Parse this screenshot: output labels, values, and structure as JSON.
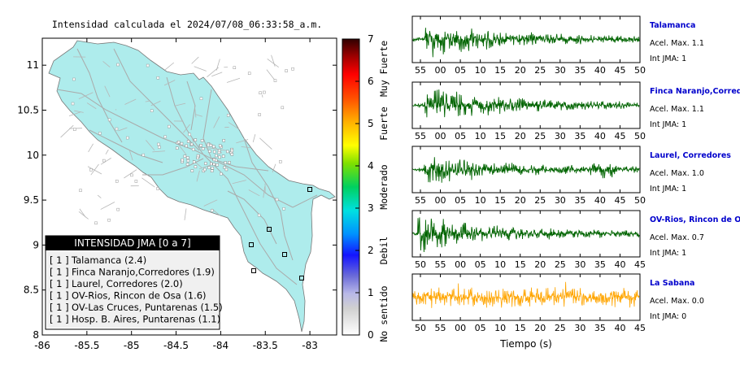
{
  "map": {
    "title": "Intensidad calculada el 2024/07/08_06:33:58_a.m.",
    "lat_ticks": [
      "11",
      "10.5",
      "10",
      "9.5",
      "9",
      "8.5",
      "8"
    ],
    "lon_ticks": [
      "-86",
      "-85.5",
      "-85",
      "-84.5",
      "-84",
      "-83.5",
      "-83"
    ],
    "xlim": [
      -86,
      -82.7
    ],
    "ylim": [
      8,
      11.3
    ],
    "land_color": "#aeecec",
    "colorbar": {
      "ticks": [
        "0",
        "1",
        "2",
        "3",
        "4",
        "5",
        "6",
        "7"
      ],
      "range": [
        0,
        7
      ],
      "labels": [
        "No sentido",
        "Debil",
        "Moderado",
        "Fuerte",
        "Muy Fuerte"
      ]
    },
    "legend": {
      "title": "INTENSIDAD JMA [0 a 7]",
      "items": [
        {
          "intensity": "[ 1 ]",
          "label": "Talamanca (2.4)"
        },
        {
          "intensity": "[ 1 ]",
          "label": "Finca Naranjo,Corredores (1.9)"
        },
        {
          "intensity": "[ 1 ]",
          "label": "Laurel, Corredores (2.0)"
        },
        {
          "intensity": "[ 1 ]",
          "label": "OV-Rios, Rincon de Osa (1.6)"
        },
        {
          "intensity": "[ 1 ]",
          "label": "OV-Las Cruces, Puntarenas (1.5)"
        },
        {
          "intensity": "[ 1 ]",
          "label": "Hosp. B. Aires, Puntarenas (1.1)"
        }
      ]
    }
  },
  "chart_data": {
    "type": "line",
    "xlabel": "Tiempo (s)",
    "series": [
      {
        "name": "Talamanca",
        "accel": "Acel. Max. 1.1",
        "jma": "Int JMA: 1",
        "color": "#006400",
        "ticks": [
          "55",
          "00",
          "05",
          "10",
          "15",
          "20",
          "25",
          "30",
          "35",
          "40",
          "45",
          "50"
        ]
      },
      {
        "name": "Finca Naranjo,Corredores",
        "accel": "Acel. Max. 1.1",
        "jma": "Int JMA: 1",
        "color": "#006400",
        "ticks": [
          "55",
          "00",
          "05",
          "10",
          "15",
          "20",
          "25",
          "30",
          "35",
          "40",
          "45",
          "50"
        ]
      },
      {
        "name": "Laurel, Corredores",
        "accel": "Acel. Max. 1.0",
        "jma": "Int JMA: 1",
        "color": "#006400",
        "ticks": [
          "55",
          "00",
          "05",
          "10",
          "15",
          "20",
          "25",
          "30",
          "35",
          "40",
          "45",
          "50"
        ]
      },
      {
        "name": "OV-Rios, Rincon de Osa",
        "accel": "Acel. Max. 0.7",
        "jma": "Int JMA: 1",
        "color": "#006400",
        "ticks": [
          "50",
          "55",
          "00",
          "05",
          "10",
          "15",
          "20",
          "25",
          "30",
          "35",
          "40",
          "45"
        ]
      },
      {
        "name": "La Sabana",
        "accel": "Acel. Max. 0.0",
        "jma": "Int JMA: 0",
        "color": "#ffa500",
        "ticks": [
          "50",
          "55",
          "00",
          "05",
          "10",
          "15",
          "20",
          "25",
          "30",
          "35",
          "40",
          "45"
        ]
      }
    ]
  }
}
